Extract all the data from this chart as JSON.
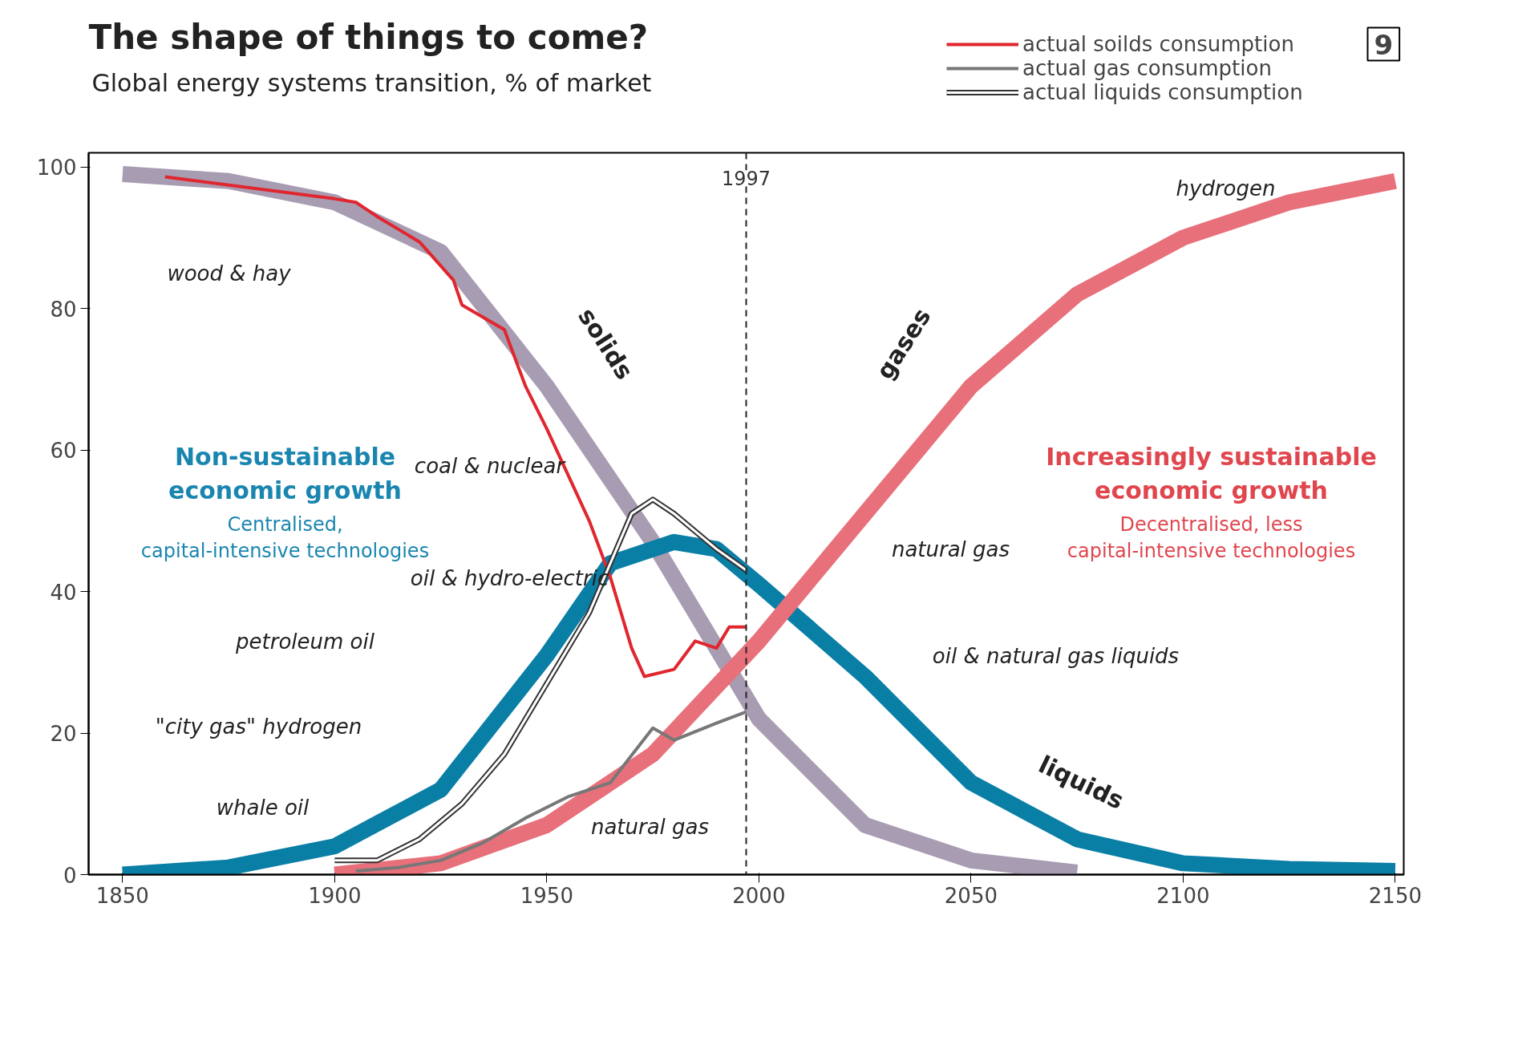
{
  "chart_data": {
    "type": "line",
    "title": "The shape of things to come?",
    "subtitle": "Global energy systems transition, % of market",
    "xlim": [
      1842,
      2152
    ],
    "ylim": [
      0,
      102
    ],
    "xticks": [
      1850,
      1900,
      1950,
      2000,
      2050,
      2100,
      2150
    ],
    "yticks": [
      0,
      20,
      40,
      60,
      80,
      100
    ],
    "grid": false,
    "legend": "top right",
    "series": [
      {
        "color": "#a89cb2",
        "x": [
          1850,
          1875,
          1900,
          1925,
          1950,
          1975,
          2000,
          2025,
          2050,
          2075
        ],
        "values": [
          99,
          98,
          95,
          88,
          69,
          47,
          22,
          7,
          2,
          0.3
        ]
      },
      {
        "color": "#0a7fa6",
        "x": [
          1850,
          1875,
          1900,
          1925,
          1950,
          1965,
          1980,
          1990,
          2000,
          2025,
          2050,
          2075,
          2100,
          2125,
          2150
        ],
        "values": [
          0,
          1,
          4,
          12,
          31,
          44,
          47,
          46,
          41,
          28,
          13,
          5,
          1.6,
          0.8,
          0.5
        ]
      },
      {
        "color": "#e8707a",
        "x": [
          1900,
          1925,
          1950,
          1975,
          2000,
          2025,
          2050,
          2075,
          2100,
          2125,
          2150
        ],
        "values": [
          0,
          1.6,
          7,
          17,
          33,
          51,
          69,
          82,
          90,
          95,
          98
        ]
      },
      {
        "name": "actual soilds consumption",
        "color": "#e0262e",
        "x": [
          1860,
          1900,
          1905,
          1910,
          1920,
          1928,
          1930,
          1940,
          1945,
          1950,
          1960,
          1965,
          1970,
          1973,
          1980,
          1985,
          1990,
          1993,
          1997
        ],
        "values": [
          98.6,
          95.5,
          95,
          93,
          89.4,
          84,
          80.5,
          77,
          69,
          63,
          50,
          42,
          32,
          28,
          29,
          33,
          32,
          35,
          35
        ]
      },
      {
        "name": "actual gas consumption",
        "color": "#777777",
        "x": [
          1905,
          1915,
          1925,
          1935,
          1945,
          1955,
          1965,
          1975,
          1980,
          1990,
          1997
        ],
        "values": [
          0.5,
          1,
          2,
          4.5,
          8,
          11,
          13,
          20.7,
          19,
          21.4,
          23
        ]
      },
      {
        "name": "actual liquids consumption",
        "color": "#ffffff",
        "x": [
          1900,
          1910,
          1920,
          1930,
          1940,
          1950,
          1960,
          1970,
          1975,
          1980,
          1990,
          1997
        ],
        "values": [
          2,
          2,
          5,
          10,
          17,
          27,
          37,
          51,
          53,
          51,
          46,
          43
        ]
      }
    ],
    "ref_lines": [
      {
        "axis": "x",
        "value": 1997,
        "label": "1997",
        "line_style": "dashed",
        "color": "#222222"
      }
    ],
    "annotations": [
      "solids",
      "gases",
      "liquids",
      "hydrogen",
      "wood & hay",
      "coal & nuclear",
      "oil & hydro-electric",
      "natural gas",
      "oil & natural gas liquids",
      "petroleum oil",
      "\"city gas\" hydrogen",
      "whale oil",
      "natural gas",
      "Non-sustainable economic growth",
      "Centralised, capital-intensive technologies",
      "Increasingly sustainable economic growth",
      "Decentralised, less capital-intensive technologies",
      "9"
    ]
  }
}
